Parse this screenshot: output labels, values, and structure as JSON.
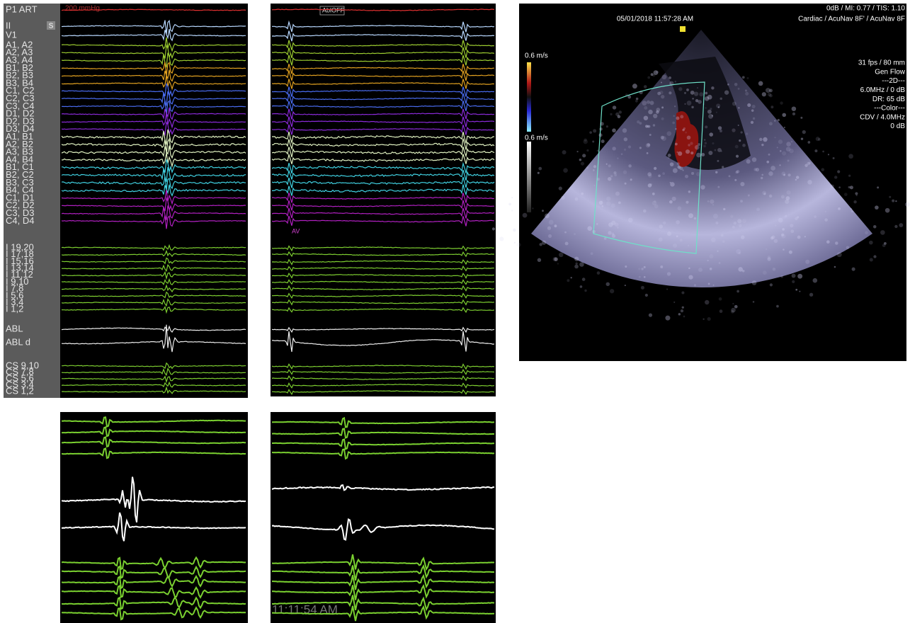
{
  "ep_panel": {
    "labels": [
      "P1 ART",
      "II",
      "V1",
      "A1, A2",
      "A2, A3",
      "A3, A4",
      "B1, B2",
      "B2, B3",
      "B3, B4",
      "C1, C2",
      "C2, C3",
      "C3, C4",
      "D1, D2",
      "D2, D3",
      "D3, D4",
      "A1, B1",
      "A2, B2",
      "A3, B3",
      "A4, B4",
      "B1, C1",
      "B2, C2",
      "B3, C3",
      "B4, C4",
      "C1, D1",
      "C2, D2",
      "C3, D3",
      "C4, D4",
      "I 19,20",
      "I 17,18",
      "I 15,16",
      "I 13,14",
      "I 11,12",
      "I 9,10",
      "I 7,8",
      "I 5,6",
      "I 3,4",
      "I 1,2",
      "ABL",
      "ABL d",
      "CS 9,10",
      "CS 7,8",
      "CS 5,6",
      "CS 3,4",
      "CS 1,2"
    ],
    "scale_label": "200 mmHg",
    "s_marker": "S"
  },
  "live_panel": {
    "status": "AblOFF",
    "marker": "AV"
  },
  "zoom_panel": {
    "time": "11:11:54 AM"
  },
  "ice_image": {
    "timestamp": "05/01/2018 11:57:28 AM",
    "header_line1": "0dB / MI: 0.77 / TIS: 1.10",
    "header_line2": "Cardiac / AcuNav 8F' / AcuNav 8F",
    "color_scale_top": "0.6 m/s",
    "color_scale_bottom": "0.6 m/s",
    "settings": [
      "31 fps / 80 mm",
      "Gen Flow",
      "---2D---",
      "6.0MHz / 0 dB",
      "DR: 65 dB",
      "---Color---",
      "CDV / 4.0MHz",
      "0 dB"
    ]
  }
}
